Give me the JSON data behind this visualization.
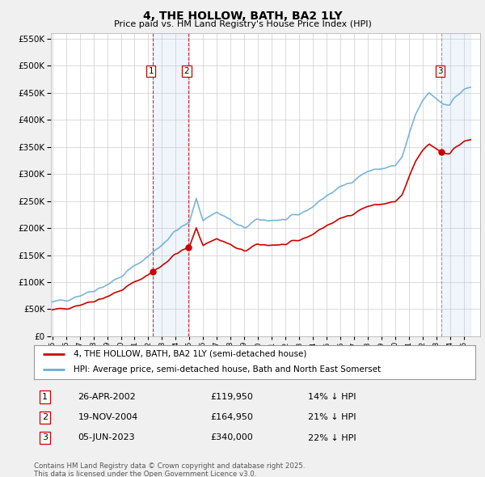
{
  "title": "4, THE HOLLOW, BATH, BA2 1LY",
  "subtitle": "Price paid vs. HM Land Registry's House Price Index (HPI)",
  "legend_label_red": "4, THE HOLLOW, BATH, BA2 1LY (semi-detached house)",
  "legend_label_blue": "HPI: Average price, semi-detached house, Bath and North East Somerset",
  "footer1": "Contains HM Land Registry data © Crown copyright and database right 2025.",
  "footer2": "This data is licensed under the Open Government Licence v3.0.",
  "transactions": [
    {
      "num": 1,
      "date": "26-APR-2002",
      "price": "£119,950",
      "hpi": "14% ↓ HPI",
      "year": 2002.3,
      "value": 119950
    },
    {
      "num": 2,
      "date": "19-NOV-2004",
      "price": "£164,950",
      "hpi": "21% ↓ HPI",
      "year": 2004.9,
      "value": 164950
    },
    {
      "num": 3,
      "date": "05-JUN-2023",
      "price": "£340,000",
      "hpi": "22% ↓ HPI",
      "year": 2023.4,
      "value": 340000
    }
  ],
  "background_color": "#f0f0f0",
  "plot_bg_color": "#ffffff",
  "grid_color": "#cccccc",
  "red_color": "#cc0000",
  "blue_color": "#6aaed6",
  "shade_color": "#ddeeff"
}
